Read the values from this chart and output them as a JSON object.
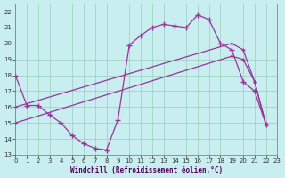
{
  "xlabel": "Windchill (Refroidissement éolien,°C)",
  "bg_color": "#c8eef0",
  "grid_color": "#99ccbb",
  "line_color": "#993399",
  "xlim": [
    0,
    23
  ],
  "ylim": [
    13,
    22.5
  ],
  "yticks": [
    13,
    14,
    15,
    16,
    17,
    18,
    19,
    20,
    21,
    22
  ],
  "xticks": [
    0,
    1,
    2,
    3,
    4,
    5,
    6,
    7,
    8,
    9,
    10,
    11,
    12,
    13,
    14,
    15,
    16,
    17,
    18,
    19,
    20,
    21,
    22,
    23
  ],
  "line1_x": [
    0,
    1,
    2,
    3,
    4,
    5,
    6,
    7,
    8,
    9,
    10,
    11,
    12,
    13,
    14,
    15,
    16,
    17,
    18,
    19,
    20,
    21,
    22
  ],
  "line1_y": [
    18.0,
    16.1,
    16.1,
    15.5,
    15.0,
    14.2,
    13.7,
    13.4,
    13.3,
    15.2,
    19.9,
    20.5,
    21.0,
    21.2,
    21.1,
    21.0,
    21.8,
    21.5,
    20.0,
    19.6,
    17.6,
    17.0,
    14.9
  ],
  "line2_x": [
    0,
    19,
    20,
    21,
    22
  ],
  "line2_y": [
    16.0,
    20.0,
    19.6,
    17.6,
    14.9
  ],
  "line3_x": [
    0,
    19,
    20,
    21,
    22
  ],
  "line3_y": [
    15.0,
    19.2,
    19.0,
    17.6,
    14.9
  ]
}
